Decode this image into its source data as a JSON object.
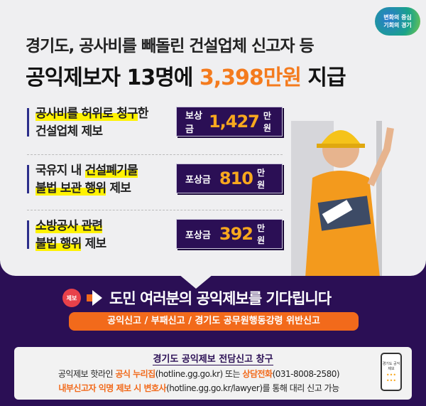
{
  "logo": {
    "line1": "변화의 중심",
    "line2": "기회의 경기"
  },
  "title": {
    "line1": "경기도, 공사비를 빼돌린 건설업체 신고자 등",
    "line2_pre": "공익제보자 13명에 ",
    "line2_amount": "3,398만원",
    "line2_post": " 지급"
  },
  "cases": [
    {
      "hl1": "공사비를 허위로 청구",
      "t1": "한",
      "t2": "건설업체 제보",
      "hl2": "",
      "label": "보상금",
      "amount": "1,427",
      "unit": "만 원"
    },
    {
      "t1": "국유지 내 ",
      "hl1": "건설폐기물",
      "hl2": "불법 보관 행위",
      "t2": " 제보",
      "label": "포상금",
      "amount": "810",
      "unit": "만 원"
    },
    {
      "hl1": "소방공사 관련",
      "t1": "",
      "hl2": "불법 행위",
      "t2": " 제보",
      "label": "포상금",
      "amount": "392",
      "unit": "만 원"
    }
  ],
  "badge": "제보",
  "headline": "도민 여러분의 공익제보를 기다립니다",
  "categories": "공익신고 / 부패신고 / 경기도 공무원행동강령 위반신고",
  "info": {
    "title": "경기도 공익제보 전담신고 창구",
    "l1_a": "공익제보 핫라인 ",
    "l1_b": "공식 누리집",
    "l1_c": "(hotline.gg.go.kr) 또는 ",
    "l1_d": "상담전화",
    "l1_e": "(031-8008-2580)",
    "l2_a": "내부신고자 익명 제보 시 변호사",
    "l2_b": "(hotline.gg.go.kr/lawyer)를 통해 대리 신고 가능",
    "phone_text": "경기도 공익제보"
  },
  "colors": {
    "purple": "#2b0f55",
    "orange": "#f26a1b",
    "gold": "#f8a81e",
    "highlight": "#fff200"
  }
}
